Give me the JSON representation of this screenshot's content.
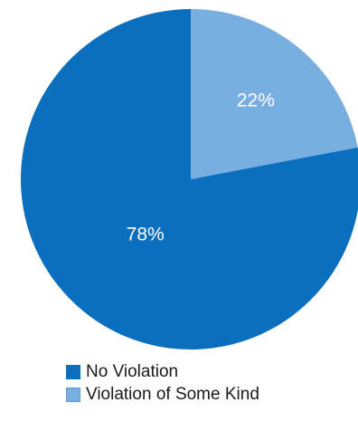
{
  "chart_data": {
    "type": "pie",
    "start_angle_deg": 0,
    "direction": "clockwise",
    "slices": [
      {
        "label": "Violation of Some Kind",
        "value": 22,
        "display": "22%",
        "color": "#79aee0"
      },
      {
        "label": "No Violation",
        "value": 78,
        "display": "78%",
        "color": "#0b6fbf"
      }
    ],
    "legend": [
      {
        "label": "No Violation",
        "color": "#0b6fbf"
      },
      {
        "label": "Violation of Some Kind",
        "color": "#79aee0"
      }
    ],
    "legend_position": "bottom-center"
  }
}
